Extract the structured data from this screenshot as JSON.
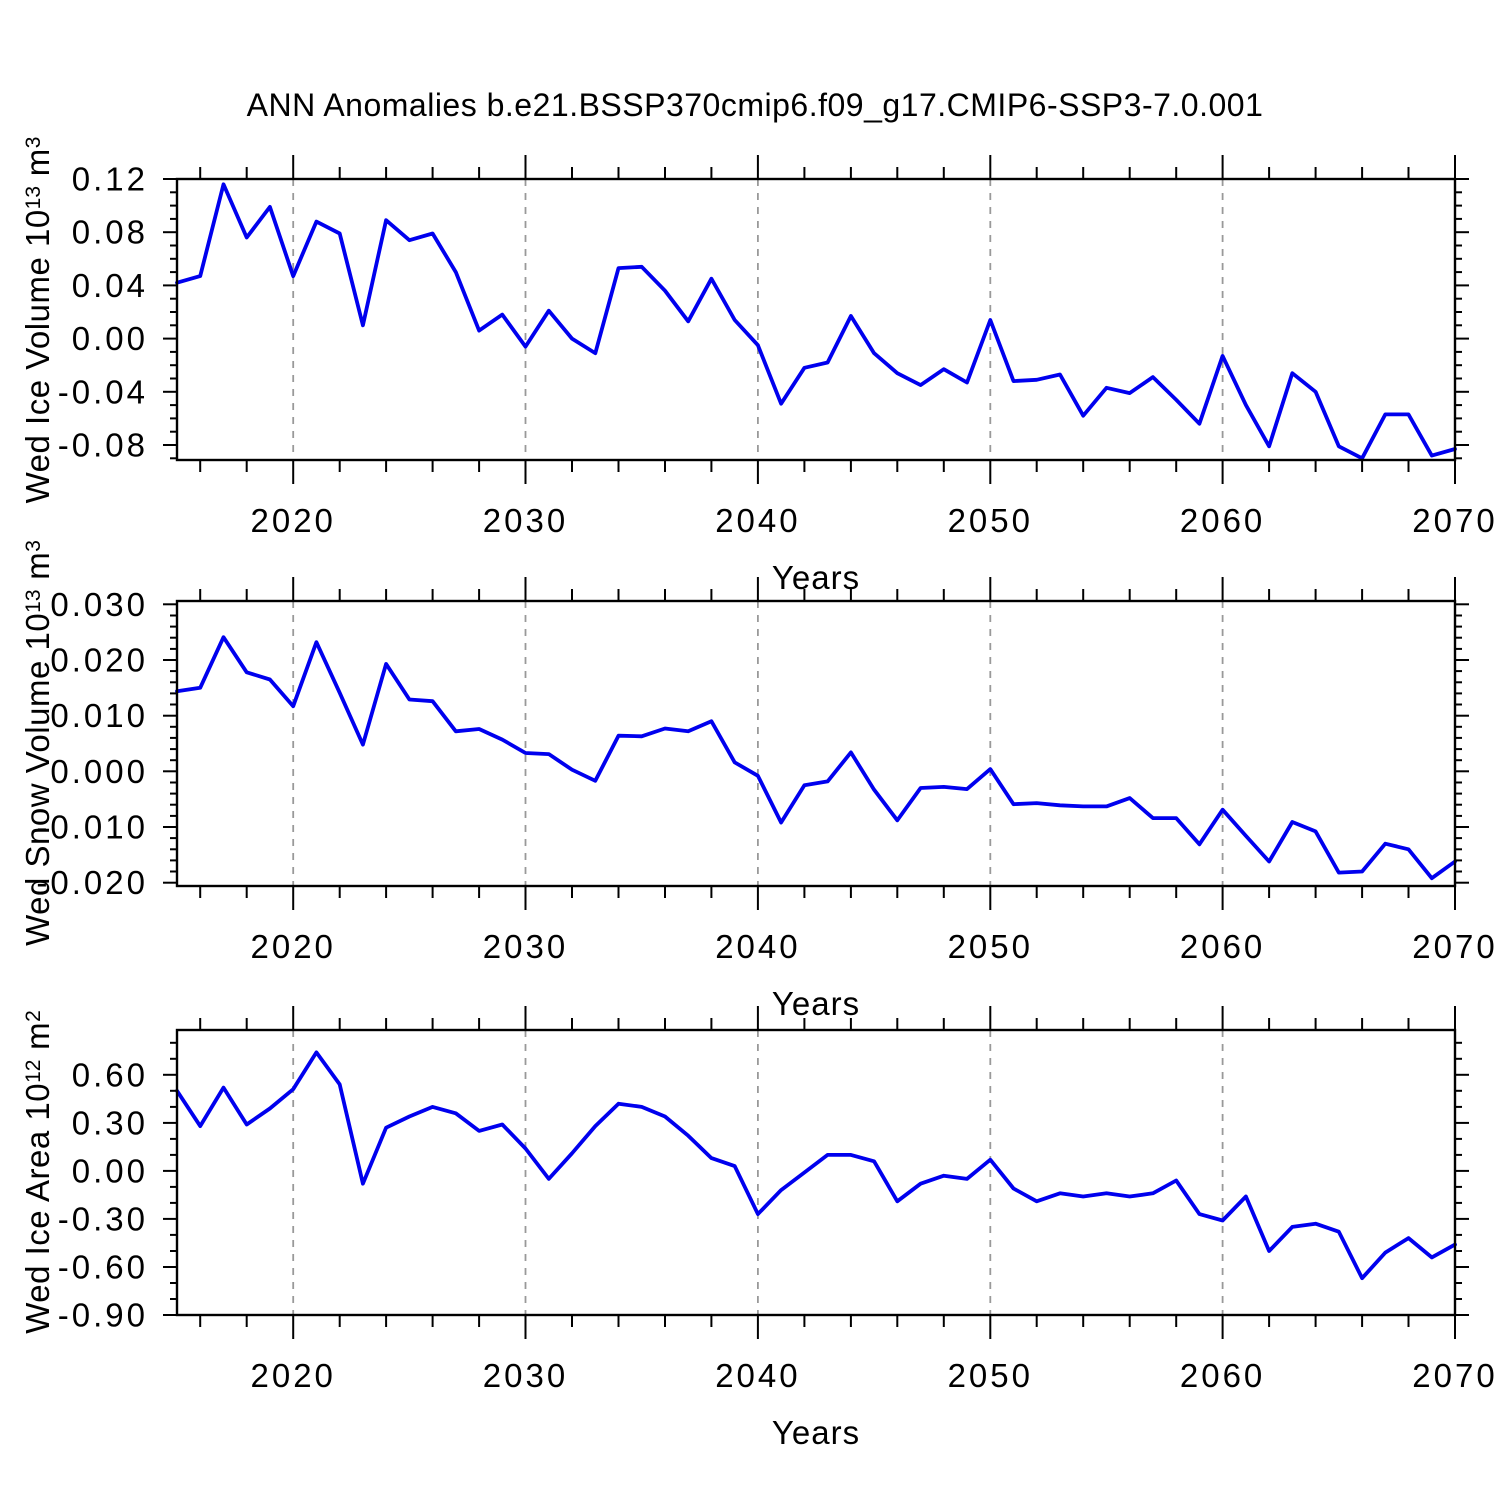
{
  "chart_data": {
    "type": "line",
    "title": "ANN Anomalies b.e21.BSSP370cmip6.f09_g17.CMIP6-SSP3-7.0.001",
    "x_label": "Years",
    "line_color": "#0000ee",
    "gridline_color": "#999999",
    "xlim": [
      2015,
      2070
    ],
    "x_major_ticks": [
      2020,
      2030,
      2040,
      2050,
      2060,
      2070
    ],
    "x_tick_labels": [
      "2020",
      "2030",
      "2040",
      "2050",
      "2060",
      "2070"
    ],
    "x_minor_step": 2,
    "gridlines_x": [
      2020,
      2030,
      2040,
      2050,
      2060
    ],
    "grid": "vertical-dashed",
    "legend": "none",
    "x": [
      2015,
      2016,
      2017,
      2018,
      2019,
      2020,
      2021,
      2022,
      2023,
      2024,
      2025,
      2026,
      2027,
      2028,
      2029,
      2030,
      2031,
      2032,
      2033,
      2034,
      2035,
      2036,
      2037,
      2038,
      2039,
      2040,
      2041,
      2042,
      2043,
      2044,
      2045,
      2046,
      2047,
      2048,
      2049,
      2050,
      2051,
      2052,
      2053,
      2054,
      2055,
      2056,
      2057,
      2058,
      2059,
      2060,
      2061,
      2062,
      2063,
      2064,
      2065,
      2066,
      2067,
      2068,
      2069,
      2070
    ],
    "panels": [
      {
        "name": "wed-ice-volume",
        "ylabel": {
          "base": "Wed Ice Volume 10",
          "exp": "13",
          "unit": " m",
          "unit_exp": "3"
        },
        "ylim": [
          -0.0913,
          0.12
        ],
        "ytick_values": [
          0.12,
          0.08,
          0.04,
          0.0,
          -0.04,
          -0.08
        ],
        "ytick_labels": [
          "0.12",
          "0.08",
          "0.04",
          "0.00",
          "-0.04",
          "-0.08"
        ],
        "y_minor_step": 0.01,
        "values": [
          0.042,
          0.047,
          0.116,
          0.076,
          0.099,
          0.047,
          0.088,
          0.079,
          0.01,
          0.089,
          0.074,
          0.079,
          0.05,
          0.006,
          0.018,
          -0.006,
          0.021,
          0.0,
          -0.011,
          0.053,
          0.054,
          0.036,
          0.013,
          0.045,
          0.014,
          -0.005,
          -0.049,
          -0.022,
          -0.018,
          0.017,
          -0.011,
          -0.026,
          -0.035,
          -0.023,
          -0.033,
          0.014,
          -0.032,
          -0.031,
          -0.027,
          -0.058,
          -0.037,
          -0.041,
          -0.029,
          -0.046,
          -0.064,
          -0.013,
          -0.05,
          -0.081,
          -0.026,
          -0.04,
          -0.081,
          -0.09,
          -0.057,
          -0.057,
          -0.088,
          -0.083
        ]
      },
      {
        "name": "wed-snow-volume",
        "ylabel": {
          "base": "Wed Snow Volume 10",
          "exp": "13",
          "unit": " m",
          "unit_exp": "3"
        },
        "ylim": [
          -0.0206,
          0.0306
        ],
        "ytick_values": [
          0.03,
          0.02,
          0.01,
          0.0,
          -0.01,
          -0.02
        ],
        "ytick_labels": [
          "0.030",
          "0.020",
          "0.010",
          "0.000",
          "-0.010",
          "-0.020"
        ],
        "y_minor_step": 0.002,
        "values": [
          0.0144,
          0.015,
          0.0241,
          0.0178,
          0.0165,
          0.0117,
          0.0232,
          0.0141,
          0.0048,
          0.0193,
          0.0129,
          0.0126,
          0.0072,
          0.0076,
          0.0057,
          0.0033,
          0.0031,
          0.0003,
          -0.0017,
          0.0064,
          0.0063,
          0.0077,
          0.0072,
          0.009,
          0.0016,
          -0.0008,
          -0.0092,
          -0.0025,
          -0.0018,
          0.0034,
          -0.0033,
          -0.0088,
          -0.003,
          -0.0028,
          -0.0032,
          0.0004,
          -0.0059,
          -0.0057,
          -0.0061,
          -0.0063,
          -0.0063,
          -0.0048,
          -0.0084,
          -0.0084,
          -0.0131,
          -0.0069,
          -0.0116,
          -0.0162,
          -0.0091,
          -0.0108,
          -0.0182,
          -0.018,
          -0.013,
          -0.014,
          -0.0192,
          -0.0162
        ]
      },
      {
        "name": "wed-ice-area",
        "ylabel": {
          "base": "Wed Ice Area 10",
          "exp": "12",
          "unit": " m",
          "unit_exp": "2"
        },
        "ylim": [
          -0.9,
          0.88
        ],
        "ytick_values": [
          0.6,
          0.3,
          0.0,
          -0.3,
          -0.6,
          -0.9
        ],
        "ytick_labels": [
          "0.60",
          "0.30",
          "0.00",
          "-0.30",
          "-0.60",
          "-0.90"
        ],
        "y_minor_step": 0.1,
        "values": [
          0.5,
          0.28,
          0.52,
          0.29,
          0.39,
          0.51,
          0.74,
          0.54,
          -0.08,
          0.27,
          0.34,
          0.4,
          0.36,
          0.25,
          0.29,
          0.14,
          -0.05,
          0.11,
          0.28,
          0.42,
          0.4,
          0.34,
          0.22,
          0.08,
          0.03,
          -0.27,
          -0.12,
          -0.01,
          0.1,
          0.1,
          0.06,
          -0.19,
          -0.08,
          -0.03,
          -0.05,
          0.07,
          -0.11,
          -0.19,
          -0.14,
          -0.16,
          -0.14,
          -0.16,
          -0.14,
          -0.06,
          -0.27,
          -0.31,
          -0.16,
          -0.5,
          -0.35,
          -0.33,
          -0.38,
          -0.67,
          -0.51,
          -0.42,
          -0.54,
          -0.46
        ]
      }
    ]
  }
}
